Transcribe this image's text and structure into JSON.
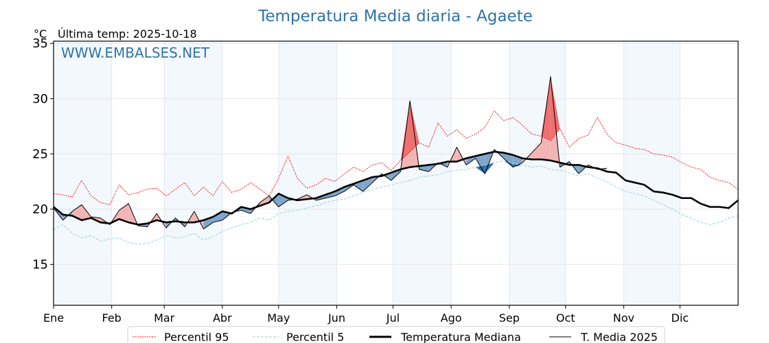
{
  "chart_data": {
    "type": "line",
    "title": "Temperatura Media diaria - Agaete",
    "subtitle": "Última temp: 2025-10-18",
    "ylabel": "°C",
    "xlabel": "",
    "watermark": "WWW.EMBALSES.NET",
    "ylim": [
      11.3,
      35.2
    ],
    "xlim_days": [
      0,
      365
    ],
    "yticks": [
      15,
      20,
      25,
      30,
      35
    ],
    "ytick_labels": [
      "15",
      "20",
      "25",
      "30",
      "35"
    ],
    "xticks": [
      {
        "label": "Ene",
        "day": 0
      },
      {
        "label": "Feb",
        "day": 31
      },
      {
        "label": "Mar",
        "day": 59
      },
      {
        "label": "Abr",
        "day": 90
      },
      {
        "label": "May",
        "day": 120
      },
      {
        "label": "Jun",
        "day": 151
      },
      {
        "label": "Jul",
        "day": 181
      },
      {
        "label": "Ago",
        "day": 212
      },
      {
        "label": "Sep",
        "day": 243
      },
      {
        "label": "Oct",
        "day": 273
      },
      {
        "label": "Nov",
        "day": 304
      },
      {
        "label": "Dic",
        "day": 334
      }
    ],
    "shaded_months": [
      "Ene",
      "Mar",
      "May",
      "Jul",
      "Sep",
      "Nov"
    ],
    "grid": true,
    "legend_position": "bottom-center",
    "x_step_days": 5,
    "series": [
      {
        "name": "Percentil 95",
        "style": "dotted",
        "color": "#ff0000",
        "values": [
          21.4,
          21.3,
          21.1,
          22.6,
          21.2,
          20.6,
          20.4,
          22.2,
          21.3,
          21.5,
          21.8,
          21.9,
          21.2,
          21.8,
          22.4,
          21.2,
          22.0,
          21.2,
          22.5,
          21.5,
          21.8,
          22.4,
          21.8,
          21.2,
          22.8,
          24.8,
          22.8,
          21.9,
          22.2,
          22.8,
          22.5,
          23.2,
          23.8,
          23.4,
          24.0,
          24.2,
          23.5,
          24.4,
          25.2,
          26.0,
          25.6,
          27.8,
          26.6,
          27.2,
          26.4,
          26.8,
          27.4,
          28.9,
          28.0,
          28.3,
          27.6,
          26.8,
          26.6,
          26.2,
          27.3,
          25.6,
          26.4,
          26.7,
          28.3,
          26.8,
          26.0,
          25.8,
          25.5,
          25.4,
          25.0,
          24.9,
          24.7,
          24.2,
          23.8,
          23.6,
          22.9,
          22.6,
          22.4,
          21.8
        ]
      },
      {
        "name": "Percentil 5",
        "style": "dashed",
        "color": "#add8e6",
        "values": [
          18.1,
          18.6,
          17.8,
          17.4,
          17.6,
          17.1,
          17.3,
          17.4,
          17.0,
          16.8,
          16.9,
          17.2,
          17.6,
          17.4,
          17.5,
          17.8,
          17.2,
          17.5,
          18.0,
          18.3,
          18.6,
          18.8,
          19.2,
          19.0,
          19.6,
          19.8,
          19.9,
          20.1,
          20.3,
          20.6,
          20.8,
          20.9,
          21.2,
          21.5,
          21.8,
          22.0,
          22.2,
          22.4,
          22.6,
          22.9,
          23.0,
          23.1,
          23.4,
          23.5,
          23.6,
          23.8,
          24.0,
          24.2,
          24.4,
          24.1,
          24.0,
          23.8,
          23.9,
          23.6,
          23.5,
          23.3,
          23.0,
          23.2,
          22.8,
          22.5,
          22.0,
          21.6,
          21.4,
          21.2,
          20.8,
          20.4,
          20.0,
          19.5,
          19.2,
          18.8,
          18.6,
          18.8,
          19.2,
          19.4
        ]
      },
      {
        "name": "Temperatura Mediana",
        "style": "solid-thick",
        "color": "#000000",
        "values": [
          20.2,
          19.5,
          19.4,
          19.0,
          19.2,
          18.8,
          18.7,
          19.1,
          18.8,
          18.6,
          18.7,
          19.0,
          18.8,
          18.9,
          18.8,
          18.8,
          19.0,
          19.3,
          19.8,
          19.6,
          20.2,
          20.0,
          20.3,
          20.6,
          21.4,
          21.0,
          20.8,
          20.9,
          21.0,
          21.3,
          21.6,
          22.0,
          22.3,
          22.6,
          22.9,
          23.0,
          23.3,
          23.6,
          23.8,
          23.9,
          24.0,
          24.1,
          24.3,
          24.3,
          24.6,
          24.8,
          25.0,
          25.2,
          25.1,
          24.9,
          24.6,
          24.5,
          24.5,
          24.4,
          24.2,
          24.0,
          24.0,
          23.8,
          23.7,
          23.4,
          23.3,
          22.6,
          22.4,
          22.2,
          21.6,
          21.5,
          21.3,
          21.0,
          21.0,
          20.5,
          20.2,
          20.2,
          20.1,
          20.8
        ]
      },
      {
        "name": "T. Media 2025",
        "style": "solid-thin",
        "color": "#000000",
        "values": [
          20.1,
          19.0,
          19.8,
          20.4,
          19.3,
          19.2,
          18.6,
          19.9,
          20.5,
          18.5,
          18.4,
          19.6,
          18.3,
          19.2,
          18.4,
          19.8,
          18.2,
          18.8,
          19.0,
          19.7,
          19.9,
          19.6,
          20.6,
          21.2,
          20.2,
          20.8,
          20.9,
          21.3,
          20.8,
          21.0,
          21.2,
          21.6,
          22.2,
          21.6,
          22.4,
          23.2,
          22.6,
          23.4,
          29.8,
          23.6,
          23.4,
          24.2,
          23.8,
          25.6,
          24.0,
          24.6,
          23.2,
          25.4,
          24.6,
          23.8,
          24.2,
          25.1,
          26.0,
          32.0,
          23.8,
          24.3,
          23.2,
          24.0,
          23.6,
          23.7
        ]
      }
    ],
    "fill_colors": {
      "above_median": "#f4b4b4",
      "above_p95": "#f07070",
      "below_median": "#7ea6cc",
      "below_p5": "#2e6ea6"
    }
  }
}
